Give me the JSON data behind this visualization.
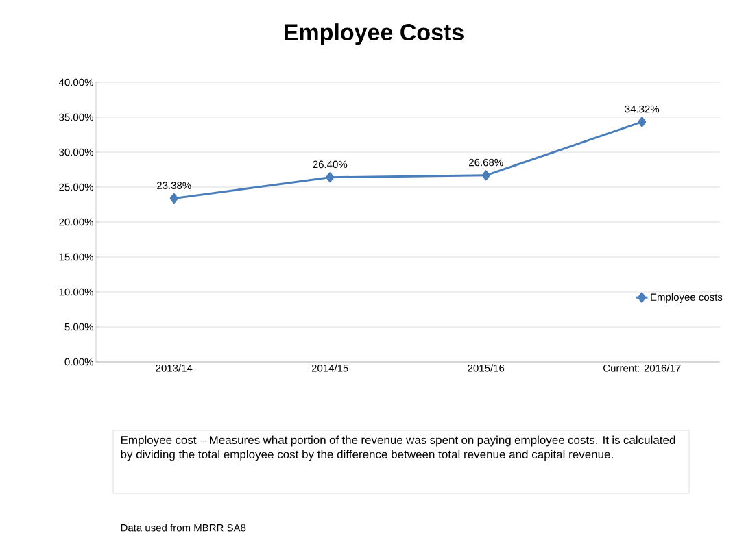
{
  "chart_data": {
    "type": "line",
    "title": "Employee Costs",
    "categories": [
      "2013/14",
      "2014/15",
      "2015/16",
      "Current: 2016/17"
    ],
    "series": [
      {
        "name": "Employee costs",
        "color": "#4a7ebb",
        "values": [
          23.38,
          26.4,
          26.68,
          34.32
        ],
        "value_labels": [
          "23.38%",
          "26.40%",
          "26.68%",
          "34.32%"
        ]
      }
    ],
    "ylim": [
      0,
      40
    ],
    "yticks": [
      {
        "value": 0,
        "label": "0.00%"
      },
      {
        "value": 5,
        "label": "5.00%"
      },
      {
        "value": 10,
        "label": "10.00%"
      },
      {
        "value": 15,
        "label": "15.00%"
      },
      {
        "value": 20,
        "label": "20.00%"
      },
      {
        "value": 25,
        "label": "25.00%"
      },
      {
        "value": 30,
        "label": "30.00%"
      },
      {
        "value": 35,
        "label": "35.00%"
      },
      {
        "value": 40,
        "label": "40.00%"
      }
    ],
    "grid": "y",
    "legend": "right",
    "marker": "diamond",
    "line_style": "solid",
    "annotations": [
      "Employee cost – Measures what portion of the revenue was spent on paying employee costs. It is calculated by dividing the total employee cost by the difference between total revenue and capital revenue.",
      "Data used from MBRR SA8"
    ]
  }
}
